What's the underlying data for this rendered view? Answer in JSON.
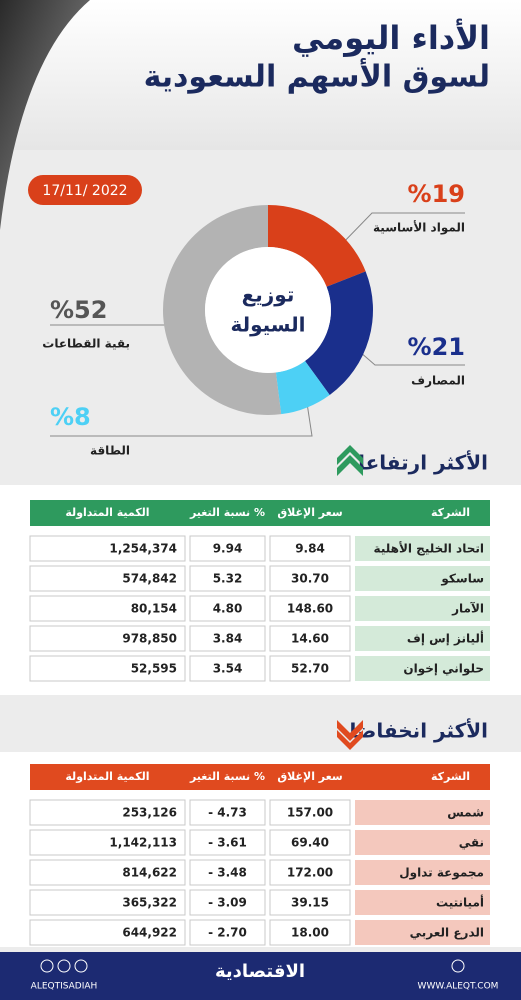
{
  "header": {
    "title_line1": "الأداء اليومي",
    "title_line2": "لسوق الأسهم السعودية",
    "date": "17/11/ 2022"
  },
  "chart_data": {
    "type": "pie",
    "center_label": [
      "توزيع",
      "السيولة"
    ],
    "categories": [
      "المواد الأساسية",
      "المصارف",
      "الطاقة",
      "بقية القطاعات"
    ],
    "values": [
      19,
      21,
      8,
      52
    ],
    "value_labels": [
      "%19",
      "%21",
      "%8",
      "%52"
    ],
    "colors": [
      "#d9401a",
      "#1a2f8c",
      "#4dd0f5",
      "#b3b3b3"
    ]
  },
  "gainers": {
    "title": "الأكثر ارتفاعا",
    "columns": [
      "الشركة",
      "سعر الإغلاق",
      "نسبة التغير %",
      "الكمية المتداولة"
    ],
    "rows": [
      [
        "اتحاد الخليج الأهلية",
        "9.84",
        "9.94",
        "1,254,374"
      ],
      [
        "ساسكو",
        "30.70",
        "5.32",
        "574,842"
      ],
      [
        "الآمار",
        "148.60",
        "4.80",
        "80,154"
      ],
      [
        "أليانز إس إف",
        "14.60",
        "3.84",
        "978,850"
      ],
      [
        "حلواني إخوان",
        "52.70",
        "3.54",
        "52,595"
      ]
    ]
  },
  "losers": {
    "title": "الأكثر انخفاضا",
    "columns": [
      "الشركة",
      "سعر الإغلاق",
      "نسبة التغير %",
      "الكمية المتداولة"
    ],
    "rows": [
      [
        "شمس",
        "157.00",
        "- 4.73",
        "253,126"
      ],
      [
        "نقي",
        "69.40",
        "- 3.61",
        "1,142,113"
      ],
      [
        "مجموعة تداول",
        "172.00",
        "- 3.48",
        "814,622"
      ],
      [
        "أميانتيت",
        "39.15",
        "- 3.09",
        "365,322"
      ],
      [
        "الدرع العربي",
        "18.00",
        "- 2.70",
        "644,922"
      ]
    ]
  },
  "footer": {
    "social": "ALEQTISADIAH",
    "logo": "الاقتصادية",
    "website": "WWW.ALEQT.COM"
  }
}
